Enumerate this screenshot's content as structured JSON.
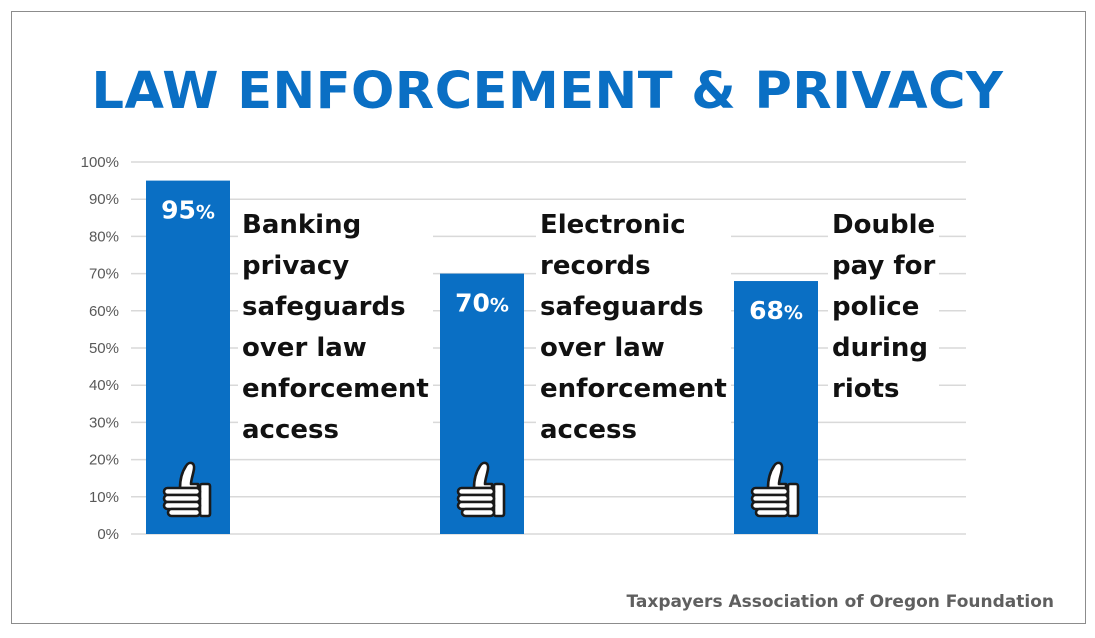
{
  "chart_data": {
    "type": "bar",
    "title": "LAW ENFORCEMENT & PRIVACY",
    "categories": [
      "Banking privacy safeguards over law enforcement access",
      "Electronic records safeguards over law enforcement access",
      "Double pay for police during riots"
    ],
    "category_lines": [
      [
        "Banking",
        "privacy",
        "safeguards",
        "over law",
        "enforcement",
        "access"
      ],
      [
        "Electronic",
        "records",
        "safeguards",
        "over law",
        "enforcement",
        "access"
      ],
      [
        "Double",
        "pay for",
        "police",
        "during",
        "riots"
      ]
    ],
    "values": [
      95,
      70,
      68
    ],
    "value_labels": [
      "95%",
      "70%",
      "68%"
    ],
    "ylim": [
      0,
      100
    ],
    "yticks": [
      "0%",
      "10%",
      "20%",
      "30%",
      "40%",
      "50%",
      "60%",
      "70%",
      "80%",
      "90%",
      "100%"
    ],
    "grid": true,
    "bar_color": "#0a6fc4",
    "icon": "thumbs-up-icon"
  },
  "footer": "Taxpayers Association of Oregon Foundation"
}
